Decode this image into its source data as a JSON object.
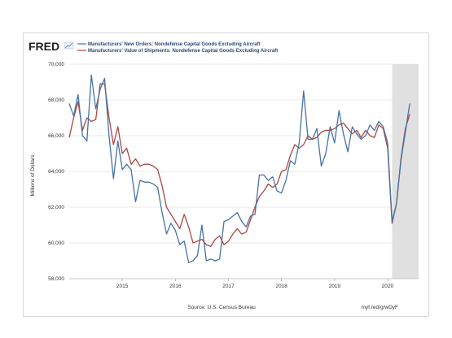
{
  "logo": "FRED",
  "legend": [
    {
      "label": "Manufacturers' New Orders: Nondefense Capital Goods Excluding Aircraft",
      "color": "#4572a7"
    },
    {
      "label": "Manufacturers' Value of Shipments: Nondefense Capital Goods Excluding Aircraft",
      "color": "#aa4643"
    }
  ],
  "footer": {
    "source": "Source: U.S. Census Bureau",
    "link": "myf.red/g/wDyF"
  },
  "chart_data": {
    "type": "line",
    "ylabel": "Millions of Dollars",
    "xlabel": "",
    "ylim": [
      58000,
      70000
    ],
    "yticks": [
      "58,000",
      "60,000",
      "62,000",
      "64,000",
      "66,000",
      "68,000",
      "70,000"
    ],
    "xticks": [
      "2015",
      "2016",
      "2017",
      "2018",
      "2019",
      "2020"
    ],
    "x_start": "2014-01",
    "x_end": "2020-08",
    "recession": {
      "start": "2020-02",
      "end": "2020-08",
      "color": "#e0e0e0"
    },
    "grid": true,
    "series": [
      {
        "name": "Manufacturers' New Orders: Nondefense Capital Goods Excluding Aircraft",
        "color": "#4572a7",
        "values": [
          67800,
          67100,
          68300,
          66000,
          65700,
          69400,
          67500,
          68600,
          69200,
          66000,
          63600,
          65700,
          64100,
          64400,
          64100,
          62300,
          63500,
          63400,
          63400,
          63300,
          63100,
          61700,
          60500,
          61100,
          60700,
          59900,
          60100,
          58900,
          59000,
          59300,
          61000,
          59000,
          59100,
          59000,
          59100,
          61200,
          61300,
          61500,
          61700,
          61200,
          60900,
          61500,
          61600,
          63800,
          63800,
          63500,
          63700,
          62900,
          62800,
          63500,
          64600,
          64400,
          65600,
          68500,
          65800,
          65800,
          66400,
          64300,
          65000,
          66500,
          65600,
          67400,
          66100,
          65100,
          66500,
          66100,
          65800,
          66000,
          66600,
          66300,
          66800,
          66500,
          65600,
          61200,
          62200,
          64600,
          66200,
          67800
        ]
      },
      {
        "name": "Manufacturers' Value of Shipments: Nondefense Capital Goods Excluding Aircraft",
        "color": "#aa4643",
        "values": [
          65900,
          67000,
          67900,
          66300,
          67000,
          66800,
          66900,
          68900,
          68900,
          67000,
          65500,
          66500,
          65000,
          65300,
          64400,
          64700,
          64300,
          64400,
          64400,
          64300,
          64100,
          63200,
          62000,
          61600,
          61200,
          60800,
          61600,
          60900,
          60000,
          60100,
          60200,
          59900,
          59800,
          60200,
          60400,
          59900,
          60100,
          60500,
          60800,
          60500,
          60600,
          61300,
          62000,
          62600,
          62900,
          63300,
          63100,
          63300,
          64000,
          64100,
          64900,
          65500,
          65300,
          65500,
          66000,
          65800,
          65900,
          66200,
          66300,
          66300,
          66400,
          66600,
          66700,
          66400,
          66100,
          66300,
          65900,
          66300,
          66000,
          65900,
          66600,
          66400,
          65300,
          61100,
          62200,
          64700,
          66400,
          67200
        ]
      }
    ]
  }
}
